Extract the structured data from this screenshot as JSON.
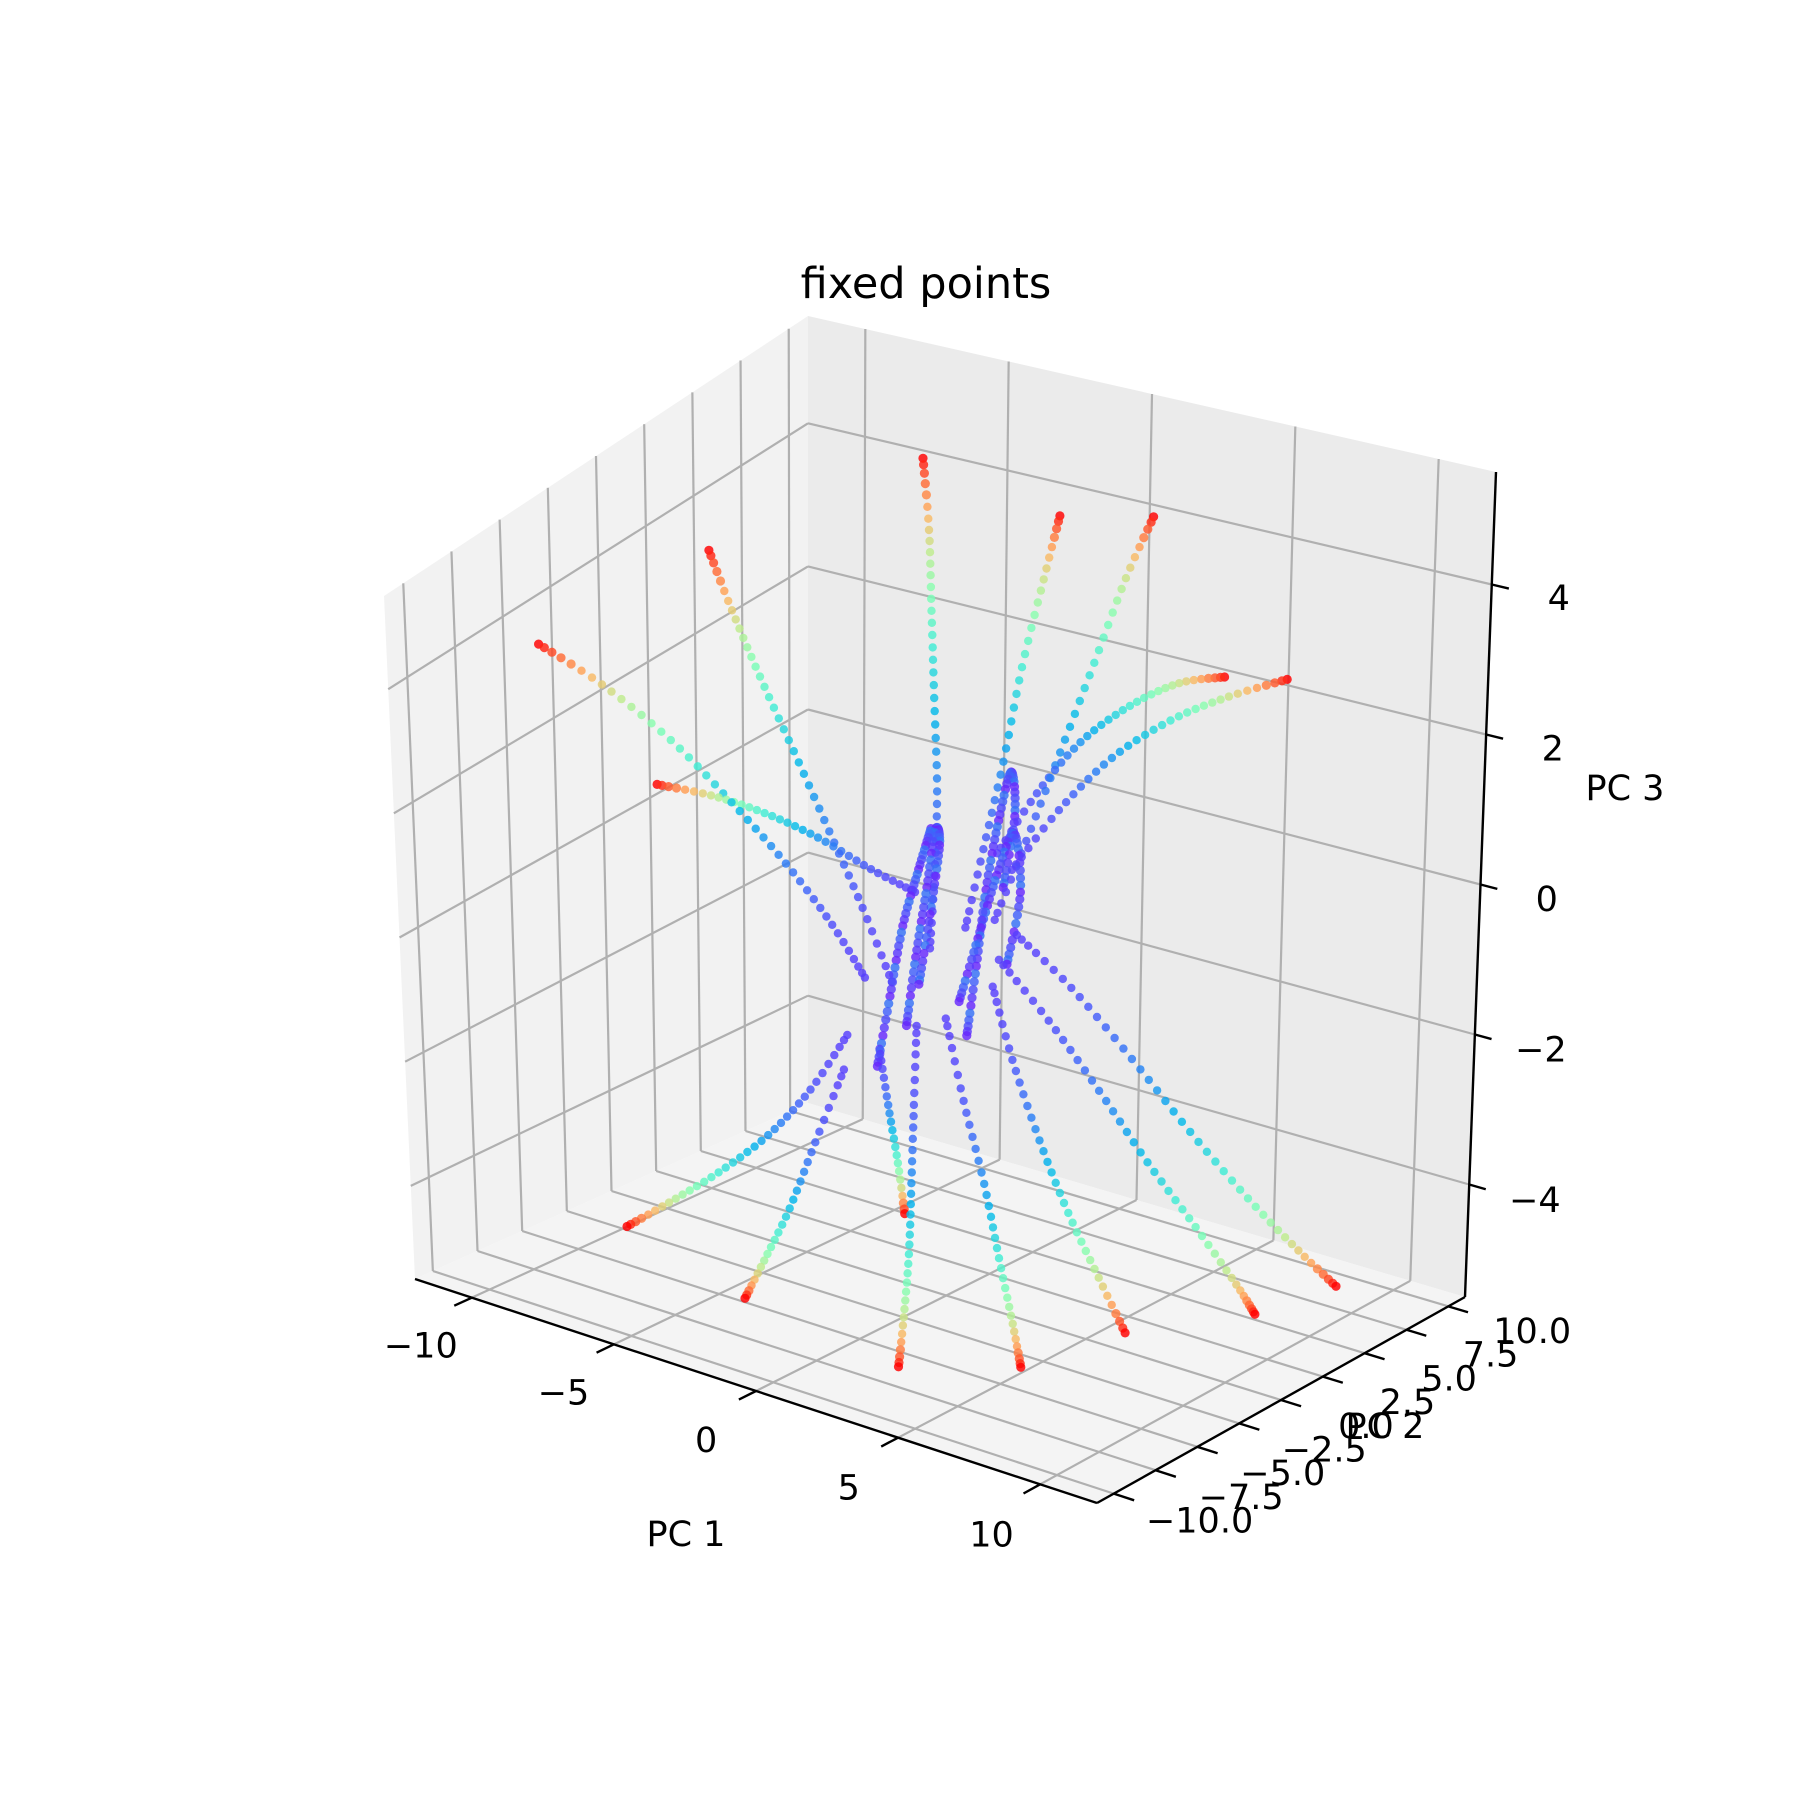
{
  "chart_data": {
    "type": "scatter",
    "title": "fixed points",
    "xlabel": "PC 1",
    "ylabel": "PC 2",
    "zlabel": "PC 3",
    "xlim": [
      -12,
      12
    ],
    "ylim": [
      -11,
      11
    ],
    "zlim": [
      -5.5,
      5.5
    ],
    "x_ticks": [
      "−10",
      "−5",
      "0",
      "5",
      "10"
    ],
    "y_ticks": [
      "−10.0",
      "−7.5",
      "−5.0",
      "−2.5",
      "0.0",
      "2.5",
      "5.0",
      "7.5",
      "10.0"
    ],
    "z_ticks": [
      "−4",
      "−2",
      "0",
      "2",
      "4"
    ],
    "grid": true,
    "colormap": "rainbow",
    "colormap_stops": [
      "#8000ff",
      "#4062fa",
      "#00b5eb",
      "#40ecd4",
      "#80ffb4",
      "#c0eb8d",
      "#ffb360",
      "#ff6231",
      "#ff0000"
    ],
    "pane_colors": {
      "left": "#f2f2f2",
      "back": "#ebebeb",
      "floor": "#f4f4f4"
    },
    "trajectories": [
      {
        "points": [
          [
            -1.0,
            -3.0,
            -0.5
          ],
          [
            -2.0,
            -3.2,
            0.2
          ],
          [
            -3.4,
            -3.5,
            1.0
          ],
          [
            -5.0,
            -3.9,
            1.8
          ],
          [
            -6.8,
            -4.3,
            2.6
          ],
          [
            -8.8,
            -4.8,
            3.3
          ],
          [
            -10.6,
            -5.3,
            3.8
          ]
        ]
      },
      {
        "points": [
          [
            -1.0,
            -1.5,
            -0.8
          ],
          [
            -2.2,
            -1.2,
            0.1
          ],
          [
            -3.6,
            -0.8,
            1.0
          ],
          [
            -5.2,
            -0.2,
            1.9
          ],
          [
            -6.8,
            0.5,
            2.7
          ],
          [
            -8.2,
            1.2,
            3.4
          ],
          [
            -9.5,
            2.0,
            4.0
          ]
        ]
      },
      {
        "points": [
          [
            -0.6,
            0.0,
            -0.5
          ],
          [
            -1.2,
            1.2,
            0.3
          ],
          [
            -2.0,
            2.6,
            1.2
          ],
          [
            -3.0,
            4.0,
            2.2
          ],
          [
            -4.0,
            5.4,
            3.1
          ],
          [
            -5.0,
            6.8,
            3.9
          ],
          [
            -6.0,
            8.0,
            4.6
          ]
        ]
      },
      {
        "points": [
          [
            -0.3,
            1.5,
            -0.4
          ],
          [
            -0.5,
            2.8,
            0.5
          ],
          [
            -0.7,
            4.2,
            1.5
          ],
          [
            -0.9,
            5.5,
            2.6
          ],
          [
            -1.0,
            6.8,
            3.6
          ],
          [
            -1.1,
            7.8,
            4.3
          ]
        ]
      },
      {
        "points": [
          [
            0.1,
            2.5,
            -0.4
          ],
          [
            0.5,
            3.6,
            0.6
          ],
          [
            0.9,
            4.8,
            1.7
          ],
          [
            1.3,
            6.0,
            2.8
          ],
          [
            1.6,
            7.2,
            3.8
          ],
          [
            1.9,
            8.2,
            4.5
          ]
        ]
      },
      {
        "points": [
          [
            -1.0,
            -4.0,
            -1.2
          ],
          [
            -1.8,
            -4.8,
            -2.0
          ],
          [
            -2.8,
            -5.6,
            -2.7
          ],
          [
            -4.0,
            -6.5,
            -3.3
          ],
          [
            -5.2,
            -7.4,
            -3.8
          ],
          [
            -6.2,
            -8.2,
            -4.2
          ]
        ]
      },
      {
        "points": [
          [
            -0.5,
            -5.0,
            -1.5
          ],
          [
            -0.9,
            -6.0,
            -2.5
          ],
          [
            -1.2,
            -7.0,
            -3.4
          ],
          [
            -1.5,
            -8.0,
            -4.1
          ],
          [
            -1.7,
            -8.8,
            -4.6
          ]
        ]
      },
      {
        "points": [
          [
            -0.5,
            -3.0,
            -1.5
          ],
          [
            -0.2,
            -3.0,
            -2.3
          ],
          [
            0.2,
            -3.1,
            -3.1
          ],
          [
            0.5,
            -3.2,
            -3.8
          ]
        ]
      },
      {
        "points": [
          [
            0.8,
            -3.0,
            -1.0
          ],
          [
            1.2,
            -3.8,
            -2.0
          ],
          [
            1.6,
            -4.6,
            -3.0
          ],
          [
            2.0,
            -5.4,
            -3.9
          ],
          [
            2.3,
            -6.2,
            -4.7
          ],
          [
            2.6,
            -7.0,
            -5.3
          ]
        ]
      },
      {
        "points": [
          [
            1.2,
            -2.0,
            -1.0
          ],
          [
            2.2,
            -2.6,
            -2.0
          ],
          [
            3.3,
            -3.2,
            -3.0
          ],
          [
            4.2,
            -3.8,
            -3.9
          ],
          [
            5.0,
            -4.3,
            -4.7
          ],
          [
            5.6,
            -4.8,
            -5.2
          ]
        ]
      },
      {
        "points": [
          [
            1.5,
            0.5,
            -0.5
          ],
          [
            3.2,
            0.6,
            -1.2
          ],
          [
            5.0,
            0.6,
            -2.0
          ],
          [
            6.8,
            0.5,
            -2.8
          ],
          [
            8.6,
            0.4,
            -3.5
          ],
          [
            10.2,
            0.2,
            -4.1
          ],
          [
            11.0,
            0.0,
            -4.4
          ]
        ]
      },
      {
        "points": [
          [
            1.5,
            1.5,
            -0.3
          ],
          [
            3.0,
            2.2,
            -1.0
          ],
          [
            4.8,
            2.8,
            -1.9
          ],
          [
            6.6,
            3.3,
            -2.8
          ],
          [
            8.4,
            3.8,
            -3.6
          ],
          [
            10.0,
            4.2,
            -4.2
          ],
          [
            11.2,
            4.5,
            -4.6
          ]
        ]
      },
      {
        "points": [
          [
            1.6,
            0.0,
            -0.8
          ],
          [
            2.8,
            -0.8,
            -1.6
          ],
          [
            4.2,
            -1.5,
            -2.5
          ],
          [
            5.6,
            -2.1,
            -3.3
          ],
          [
            7.0,
            -2.6,
            -4.0
          ],
          [
            8.2,
            -3.0,
            -4.6
          ]
        ]
      },
      {
        "points": [
          [
            1.0,
            2.0,
            0.5
          ],
          [
            2.0,
            3.0,
            1.3
          ],
          [
            3.2,
            4.0,
            2.0
          ],
          [
            4.6,
            5.0,
            2.5
          ],
          [
            6.0,
            6.0,
            2.8
          ],
          [
            7.4,
            7.0,
            3.0
          ]
        ]
      },
      {
        "points": [
          [
            0.8,
            1.5,
            0.8
          ],
          [
            1.6,
            2.4,
            1.6
          ],
          [
            2.6,
            3.2,
            2.3
          ],
          [
            3.8,
            4.0,
            2.8
          ],
          [
            5.0,
            4.8,
            3.1
          ],
          [
            6.2,
            5.4,
            3.2
          ]
        ]
      },
      {
        "points": [
          [
            -0.5,
            -1.0,
            0.5
          ],
          [
            -1.4,
            -2.0,
            0.9
          ],
          [
            -2.6,
            -3.0,
            1.4
          ],
          [
            -3.8,
            -4.0,
            1.8
          ],
          [
            -5.0,
            -5.0,
            2.1
          ],
          [
            -6.2,
            -6.0,
            2.3
          ]
        ]
      }
    ],
    "core_bundles": [
      {
        "points": [
          [
            -0.8,
            -1.0,
            -1.5
          ],
          [
            -0.6,
            -0.8,
            -0.5
          ],
          [
            -0.4,
            -0.5,
            0.5
          ],
          [
            -0.3,
            -0.2,
            1.3
          ],
          [
            -0.4,
            0.2,
            1.0
          ],
          [
            -0.6,
            0.0,
            0.0
          ],
          [
            -0.8,
            -0.3,
            -1.0
          ]
        ]
      },
      {
        "points": [
          [
            -1.2,
            -2.0,
            -2.0
          ],
          [
            -1.0,
            -1.6,
            -1.0
          ],
          [
            -0.8,
            -1.2,
            0.0
          ],
          [
            -0.5,
            -0.8,
            0.8
          ],
          [
            -0.2,
            -0.6,
            1.4
          ]
        ]
      },
      {
        "points": [
          [
            0.2,
            0.8,
            -1.8
          ],
          [
            0.4,
            1.0,
            -0.8
          ],
          [
            0.6,
            1.2,
            0.3
          ],
          [
            0.9,
            1.4,
            1.3
          ],
          [
            1.2,
            1.6,
            2.0
          ],
          [
            1.4,
            1.5,
            1.4
          ],
          [
            1.2,
            1.2,
            0.4
          ]
        ]
      },
      {
        "points": [
          [
            0.3,
            0.2,
            -1.2
          ],
          [
            0.7,
            0.6,
            -0.3
          ],
          [
            1.1,
            1.0,
            0.6
          ],
          [
            1.5,
            1.3,
            1.2
          ],
          [
            1.8,
            1.2,
            0.4
          ],
          [
            1.6,
            0.8,
            -0.6
          ]
        ]
      }
    ]
  }
}
